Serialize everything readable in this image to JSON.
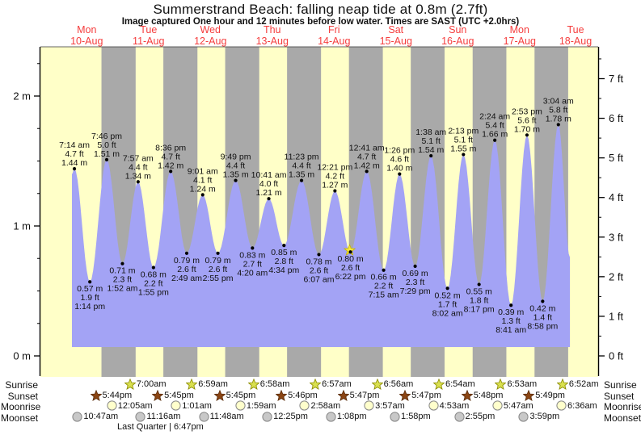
{
  "chart_data": {
    "type": "area",
    "title": "Summerstrand Beach: falling  neap tide at 0.8m (2.7ft)",
    "subtitle": "Image captured One hour and 12 minutes before low water. Times are SAST (UTC +2.0hrs)",
    "timezone_note": "SAST (UTC +2.0hrs)",
    "ylim_m": [
      0,
      2.38
    ],
    "yticks_left": [
      {
        "value": 0,
        "label": "0 m"
      },
      {
        "value": 1,
        "label": "1 m"
      },
      {
        "value": 2,
        "label": "2 m"
      }
    ],
    "yticks_right": [
      {
        "value": 0,
        "label": "0 ft"
      },
      {
        "value": 1,
        "label": "1 ft"
      },
      {
        "value": 2,
        "label": "2 ft"
      },
      {
        "value": 3,
        "label": "3 ft"
      },
      {
        "value": 4,
        "label": "4 ft"
      },
      {
        "value": 5,
        "label": "5 ft"
      },
      {
        "value": 6,
        "label": "6 ft"
      },
      {
        "value": 7,
        "label": "7 ft"
      }
    ],
    "days": [
      {
        "name": "Mon",
        "date": "10-Aug"
      },
      {
        "name": "Tue",
        "date": "11-Aug"
      },
      {
        "name": "Wed",
        "date": "12-Aug"
      },
      {
        "name": "Thu",
        "date": "13-Aug"
      },
      {
        "name": "Fri",
        "date": "14-Aug"
      },
      {
        "name": "Sat",
        "date": "15-Aug"
      },
      {
        "name": "Sun",
        "date": "16-Aug"
      },
      {
        "name": "Mon",
        "date": "17-Aug"
      },
      {
        "name": "Tue",
        "date": "18-Aug"
      }
    ],
    "tides": [
      {
        "day": 0,
        "time": "7:14 am",
        "m": "1.44",
        "ft": "4.7",
        "type": "high"
      },
      {
        "day": 0,
        "time": "1:14 pm",
        "m": "0.57",
        "ft": "1.9",
        "type": "low"
      },
      {
        "day": 0,
        "time": "7:46 pm",
        "m": "1.51",
        "ft": "5.0",
        "type": "high"
      },
      {
        "day": 1,
        "time": "1:52 am",
        "m": "0.71",
        "ft": "2.3",
        "type": "low"
      },
      {
        "day": 1,
        "time": "7:57 am",
        "m": "1.34",
        "ft": "4.4",
        "type": "high"
      },
      {
        "day": 1,
        "time": "1:55 pm",
        "m": "0.68",
        "ft": "2.2",
        "type": "low"
      },
      {
        "day": 1,
        "time": "8:36 pm",
        "m": "1.42",
        "ft": "4.7",
        "type": "high"
      },
      {
        "day": 2,
        "time": "2:49 am",
        "m": "0.79",
        "ft": "2.6",
        "type": "low"
      },
      {
        "day": 2,
        "time": "9:01 am",
        "m": "1.24",
        "ft": "4.1",
        "type": "high"
      },
      {
        "day": 2,
        "time": "2:55 pm",
        "m": "0.79",
        "ft": "2.6",
        "type": "low"
      },
      {
        "day": 2,
        "time": "9:49 pm",
        "m": "1.35",
        "ft": "4.4",
        "type": "high"
      },
      {
        "day": 3,
        "time": "4:20 am",
        "m": "0.83",
        "ft": "2.7",
        "type": "low"
      },
      {
        "day": 3,
        "time": "10:41 am",
        "m": "1.21",
        "ft": "4.0",
        "type": "high"
      },
      {
        "day": 3,
        "time": "4:34 pm",
        "m": "0.85",
        "ft": "2.8",
        "type": "low"
      },
      {
        "day": 3,
        "time": "11:23 pm",
        "m": "1.35",
        "ft": "4.4",
        "type": "high"
      },
      {
        "day": 4,
        "time": "6:07 am",
        "m": "0.78",
        "ft": "2.6",
        "type": "low"
      },
      {
        "day": 4,
        "time": "12:21 pm",
        "m": "1.27",
        "ft": "4.2",
        "type": "high"
      },
      {
        "day": 4,
        "time": "6:22 pm",
        "m": "0.80",
        "ft": "2.6",
        "type": "low",
        "highlight": true
      },
      {
        "day": 5,
        "time": "12:41 am",
        "m": "1.42",
        "ft": "4.7",
        "type": "high"
      },
      {
        "day": 5,
        "time": "7:15 am",
        "m": "0.66",
        "ft": "2.2",
        "type": "low"
      },
      {
        "day": 5,
        "time": "1:26 pm",
        "m": "1.40",
        "ft": "4.6",
        "type": "high"
      },
      {
        "day": 5,
        "time": "7:29 pm",
        "m": "0.69",
        "ft": "2.3",
        "type": "low"
      },
      {
        "day": 6,
        "time": "1:38 am",
        "m": "1.54",
        "ft": "5.1",
        "type": "high"
      },
      {
        "day": 6,
        "time": "8:02 am",
        "m": "0.52",
        "ft": "1.7",
        "type": "low"
      },
      {
        "day": 6,
        "time": "2:13 pm",
        "m": "1.55",
        "ft": "5.1",
        "type": "high"
      },
      {
        "day": 6,
        "time": "8:17 pm",
        "m": "0.55",
        "ft": "1.8",
        "type": "low"
      },
      {
        "day": 7,
        "time": "2:24 am",
        "m": "1.66",
        "ft": "5.4",
        "type": "high"
      },
      {
        "day": 7,
        "time": "8:41 am",
        "m": "0.39",
        "ft": "1.3",
        "type": "low"
      },
      {
        "day": 7,
        "time": "2:53 pm",
        "m": "1.70",
        "ft": "5.6",
        "type": "high"
      },
      {
        "day": 7,
        "time": "8:58 pm",
        "m": "0.42",
        "ft": "1.4",
        "type": "low"
      },
      {
        "day": 8,
        "time": "3:04 am",
        "m": "1.78",
        "ft": "5.8",
        "type": "high"
      }
    ],
    "almanac": {
      "rows": [
        {
          "label": "Sunrise",
          "icon": "sunrise",
          "events": [
            {
              "day": 1,
              "time": "7:00am"
            },
            {
              "day": 2,
              "time": "6:59am"
            },
            {
              "day": 3,
              "time": "6:58am"
            },
            {
              "day": 4,
              "time": "6:57am"
            },
            {
              "day": 5,
              "time": "6:56am"
            },
            {
              "day": 6,
              "time": "6:54am"
            },
            {
              "day": 7,
              "time": "6:53am"
            },
            {
              "day": 8,
              "time": "6:52am"
            }
          ]
        },
        {
          "label": "Sunset",
          "icon": "sunset",
          "events": [
            {
              "day": 0,
              "time": "5:44pm"
            },
            {
              "day": 1,
              "time": "5:45pm"
            },
            {
              "day": 2,
              "time": "5:45pm"
            },
            {
              "day": 3,
              "time": "5:46pm"
            },
            {
              "day": 4,
              "time": "5:47pm"
            },
            {
              "day": 5,
              "time": "5:47pm"
            },
            {
              "day": 6,
              "time": "5:48pm"
            },
            {
              "day": 7,
              "time": "5:49pm"
            }
          ]
        },
        {
          "label": "Moonrise",
          "icon": "moonrise",
          "events": [
            {
              "day": 1,
              "time": "12:05am"
            },
            {
              "day": 2,
              "time": "1:01am"
            },
            {
              "day": 3,
              "time": "1:59am"
            },
            {
              "day": 4,
              "time": "2:58am"
            },
            {
              "day": 5,
              "time": "3:57am"
            },
            {
              "day": 6,
              "time": "4:53am"
            },
            {
              "day": 7,
              "time": "5:47am"
            },
            {
              "day": 8,
              "time": "6:36am"
            }
          ]
        },
        {
          "label": "Moonset",
          "icon": "moonset",
          "events": [
            {
              "day": 0,
              "time": "10:47am"
            },
            {
              "day": 1,
              "time": "11:16am"
            },
            {
              "day": 2,
              "time": "11:48am"
            },
            {
              "day": 3,
              "time": "12:25pm"
            },
            {
              "day": 4,
              "time": "1:08pm"
            },
            {
              "day": 5,
              "time": "1:58pm"
            },
            {
              "day": 6,
              "time": "2:55pm"
            },
            {
              "day": 7,
              "time": "3:59pm"
            }
          ]
        }
      ],
      "moon_phase": {
        "label": "Last Quarter | 6:47pm",
        "day": 1,
        "time": "6:47pm"
      }
    },
    "colors": {
      "day_band": "#ffffc8",
      "night_band": "#a9a9a9",
      "tide_fill": "#a3a3f5",
      "date_red": "#f53d3d",
      "sunrise_star": "#d9e04f",
      "sunrise_star_stroke": "#8a8a00",
      "sunset_star": "#8b4513",
      "sunset_star_stroke": "#5a2d0c",
      "moonrise_fill": "#ffffcc",
      "moonset_fill": "#c8c8c8",
      "moon_stroke": "#888888",
      "highlight": "#f5e73a",
      "highlight_stroke": "#c9b500"
    }
  }
}
